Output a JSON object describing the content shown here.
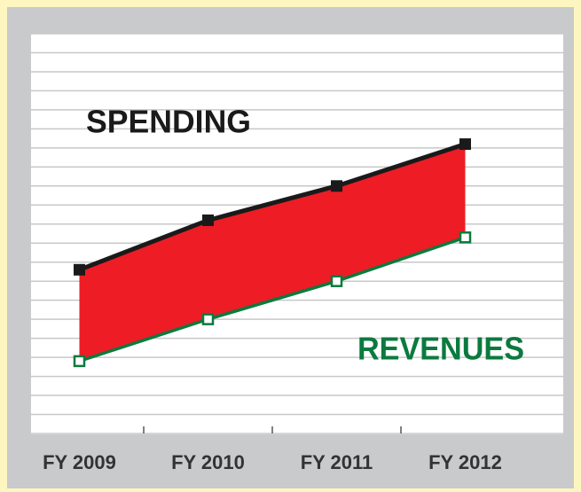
{
  "chart_data": {
    "type": "line",
    "categories": [
      "FY 2009",
      "FY 2010",
      "FY 2011",
      "FY 2012"
    ],
    "series": [
      {
        "name": "SPENDING",
        "color": "#1a1a1a",
        "values": [
          8.6,
          11.2,
          13.0,
          15.2
        ]
      },
      {
        "name": "REVENUES",
        "color": "#0b7a3e",
        "values": [
          3.8,
          6.0,
          8.0,
          10.3
        ]
      }
    ],
    "fill_between_color": "#ee1c25",
    "ylim": [
      0,
      21
    ],
    "yticks": [
      0,
      1,
      2,
      3,
      4,
      5,
      6,
      7,
      8,
      9,
      10,
      11,
      12,
      13,
      14,
      15,
      16,
      17,
      18,
      19,
      20,
      21
    ],
    "grid": true
  }
}
